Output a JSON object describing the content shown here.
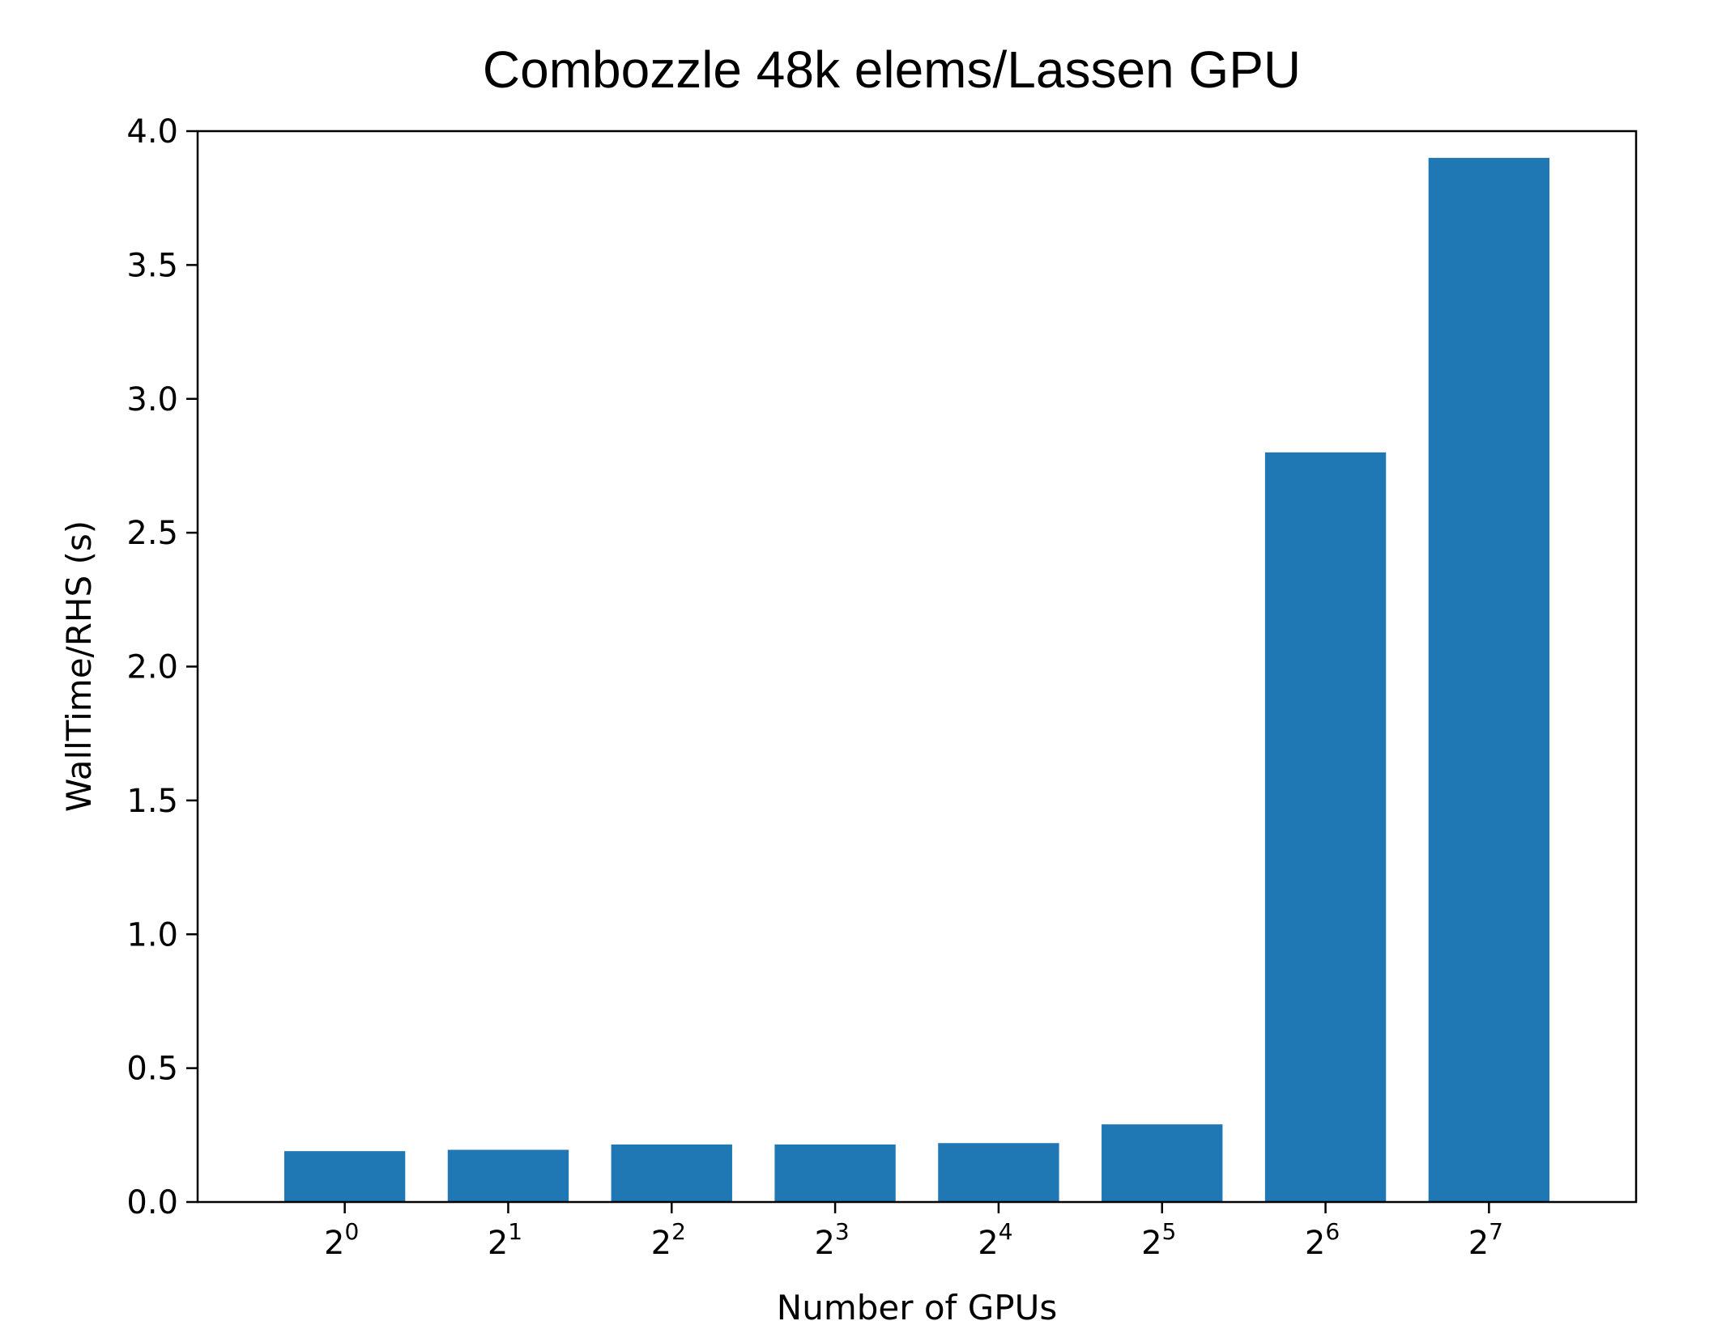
{
  "chart_data": {
    "type": "bar",
    "title": "Combozzle 48k elems/Lassen GPU",
    "xlabel": "Number of GPUs",
    "ylabel": "WallTime/RHS (s)",
    "categories": [
      {
        "base": "2",
        "exp": "0"
      },
      {
        "base": "2",
        "exp": "1"
      },
      {
        "base": "2",
        "exp": "2"
      },
      {
        "base": "2",
        "exp": "3"
      },
      {
        "base": "2",
        "exp": "4"
      },
      {
        "base": "2",
        "exp": "5"
      },
      {
        "base": "2",
        "exp": "6"
      },
      {
        "base": "2",
        "exp": "7"
      }
    ],
    "values": [
      0.19,
      0.195,
      0.215,
      0.215,
      0.22,
      0.29,
      2.8,
      3.9
    ],
    "ylim": [
      0,
      4.0
    ],
    "yticks": [
      "0.0",
      "0.5",
      "1.0",
      "1.5",
      "2.0",
      "2.5",
      "3.0",
      "3.5",
      "4.0"
    ],
    "bar_color": "#1f77b4",
    "grid": false
  }
}
